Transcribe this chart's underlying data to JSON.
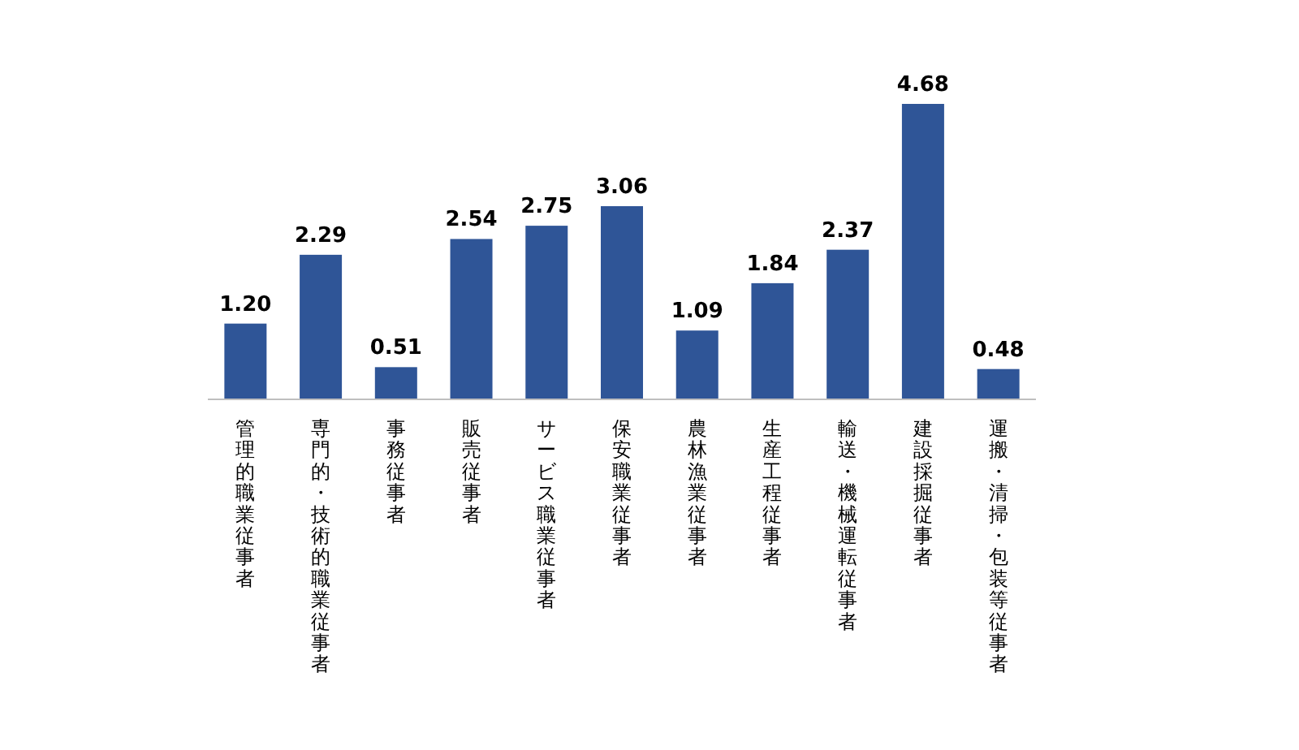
{
  "chart_data": {
    "type": "bar",
    "categories": [
      "管理的職業従事者",
      "専門的・技術的職業従事者",
      "事務従事者",
      "販売従事者",
      "サービス職業従事者",
      "保安職業従事者",
      "農林漁業従事者",
      "生産工程従事者",
      "輸送・機械運転従事者",
      "建設採掘従事者",
      "運搬・清掃・包装等従事者"
    ],
    "values": [
      1.2,
      2.29,
      0.51,
      2.54,
      2.75,
      3.06,
      1.09,
      1.84,
      2.37,
      4.68,
      0.48
    ],
    "value_labels": [
      "1.20",
      "2.29",
      "0.51",
      "2.54",
      "2.75",
      "3.06",
      "1.09",
      "1.84",
      "2.37",
      "4.68",
      "0.48"
    ],
    "color": "#2f5597"
  }
}
